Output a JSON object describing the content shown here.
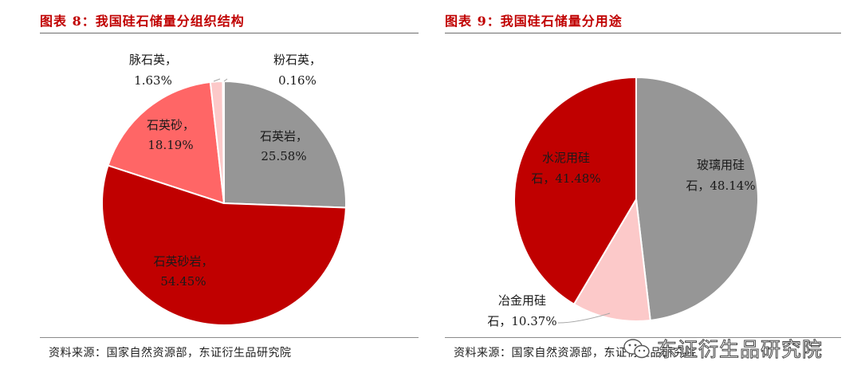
{
  "chart_data": [
    {
      "type": "pie",
      "title": "图表 8：我国硅石储量分组织结构",
      "source": "资料来源：国家自然资源部，东证衍生品研究院",
      "slices": [
        {
          "name": "石英岩",
          "value": 25.58,
          "display": "25.58%",
          "color": "#969696"
        },
        {
          "name": "石英砂岩",
          "value": 54.45,
          "display": "54.45%",
          "color": "#c00000"
        },
        {
          "name": "石英砂",
          "value": 18.19,
          "display": "18.19%",
          "color": "#ff6666"
        },
        {
          "name": "脉石英",
          "value": 1.63,
          "display": "1.63%",
          "color": "#fcc9c9"
        },
        {
          "name": "粉石英",
          "value": 0.16,
          "display": "0.16%",
          "color": "#fcc9c9"
        }
      ]
    },
    {
      "type": "pie",
      "title": "图表 9：我国硅石储量分用途",
      "source": "资料来源：国家自然资源部，东证衍生品研究院",
      "slices": [
        {
          "name": "玻璃用硅石",
          "value": 48.14,
          "display": "48.14%",
          "color": "#969696"
        },
        {
          "name": "冶金用硅石",
          "value": 10.37,
          "display": "10.37%",
          "color": "#fcc9c9"
        },
        {
          "name": "水泥用硅石",
          "value": 41.48,
          "display": "41.48%",
          "color": "#c00000"
        }
      ]
    }
  ],
  "labels": {
    "left": [
      "石英岩，",
      "25.58%",
      "石英砂岩，",
      "54.45%",
      "石英砂，",
      "18.19%",
      "脉石英，",
      "1.63%",
      "粉石英，",
      "0.16%"
    ],
    "right": [
      "玻璃用硅",
      "石，48.14%",
      "水泥用硅",
      "石，41.48%",
      "冶金用硅",
      "石，10.37%"
    ]
  },
  "watermark": {
    "text": "东证衍生品研究院",
    "icon": "wechat-icon"
  }
}
